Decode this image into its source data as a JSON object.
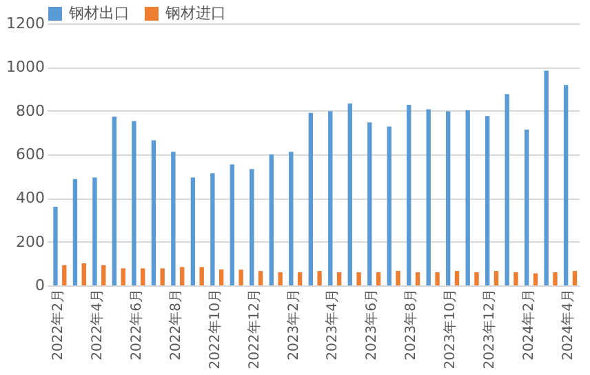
{
  "chart_data": {
    "type": "bar",
    "categories": [
      "2022年2月",
      null,
      "2022年4月",
      null,
      "2022年6月",
      null,
      "2022年8月",
      null,
      "2022年10月",
      null,
      "2022年12月",
      null,
      "2023年2月",
      null,
      "2023年4月",
      null,
      "2023年6月",
      null,
      "2023年8月",
      null,
      "2023年10月",
      null,
      "2023年12月",
      null,
      "2024年2月",
      null,
      "2024年4月"
    ],
    "series": [
      {
        "name": "钢材出口",
        "color": "#5b9bd5",
        "values": [
          360,
          487,
          494,
          773,
          752,
          665,
          612,
          494,
          514,
          554,
          533,
          600,
          612,
          790,
          798,
          833,
          747,
          728,
          827,
          807,
          797,
          802,
          776,
          876,
          714,
          984,
          918
        ]
      },
      {
        "name": "钢材进口",
        "color": "#ed7d31",
        "values": [
          93,
          101,
          93,
          78,
          78,
          78,
          84,
          84,
          73,
          72,
          66,
          60,
          60,
          66,
          60,
          60,
          60,
          66,
          60,
          60,
          66,
          60,
          66,
          60,
          55,
          60,
          66
        ]
      }
    ],
    "ylim": [
      0,
      1200
    ],
    "yticks": [
      0,
      200,
      400,
      600,
      800,
      1000,
      1200
    ],
    "grid": "y",
    "legend": "top"
  }
}
